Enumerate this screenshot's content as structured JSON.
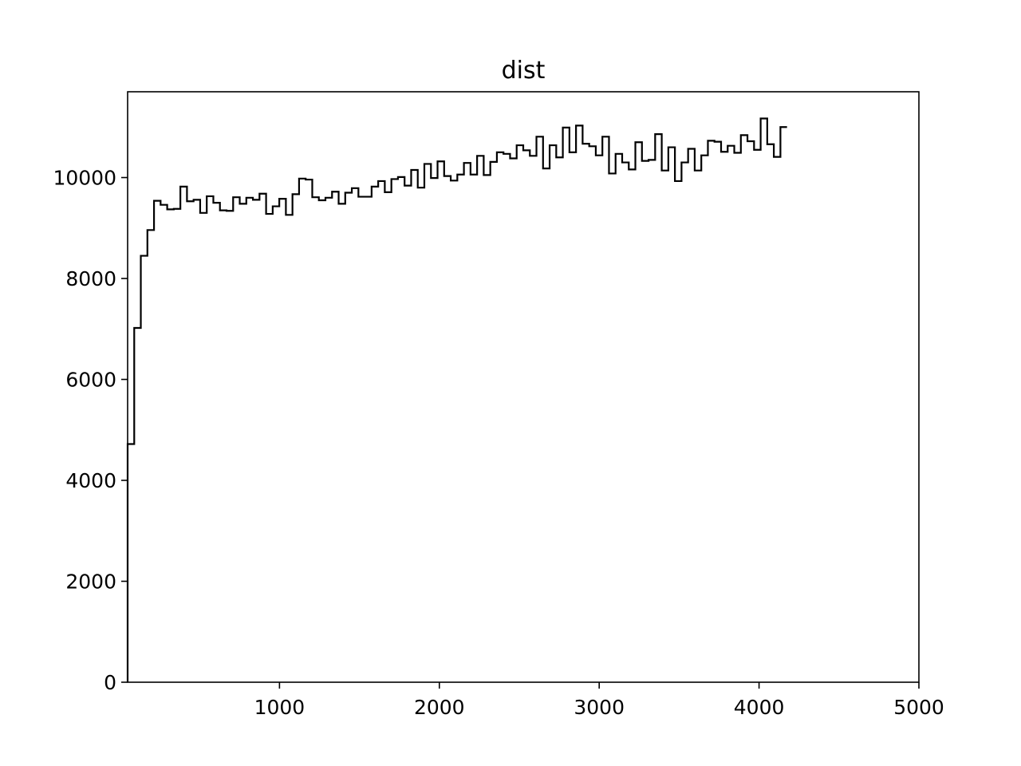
{
  "chart_data": {
    "type": "histogram",
    "title": "dist",
    "xlabel": "",
    "ylabel": "",
    "xlim": [
      50,
      5000
    ],
    "ylim": [
      0,
      11700
    ],
    "xticks": [
      1000,
      2000,
      3000,
      4000,
      5000
    ],
    "yticks": [
      0,
      2000,
      4000,
      6000,
      8000,
      10000
    ],
    "grid": false,
    "legend": "none",
    "bin_start": 50,
    "bin_width": 41.25,
    "counts": [
      4720,
      7020,
      8450,
      8960,
      9540,
      9460,
      9370,
      9380,
      9820,
      9530,
      9560,
      9300,
      9630,
      9500,
      9350,
      9340,
      9610,
      9480,
      9600,
      9560,
      9680,
      9280,
      9430,
      9580,
      9260,
      9670,
      9980,
      9960,
      9610,
      9550,
      9600,
      9720,
      9480,
      9700,
      9790,
      9620,
      9620,
      9820,
      9930,
      9710,
      9970,
      10010,
      9840,
      10150,
      9800,
      10270,
      9990,
      10320,
      10030,
      9940,
      10060,
      10290,
      10060,
      10430,
      10050,
      10310,
      10500,
      10470,
      10380,
      10640,
      10540,
      10430,
      10810,
      10180,
      10640,
      10400,
      10990,
      10500,
      11030,
      10670,
      10620,
      10440,
      10810,
      10080,
      10470,
      10300,
      10160,
      10700,
      10330,
      10350,
      10860,
      10140,
      10600,
      9930,
      10300,
      10570,
      10140,
      10440,
      10730,
      10710,
      10510,
      10630,
      10490,
      10840,
      10720,
      10550,
      11170,
      10660,
      10410,
      11000
    ]
  }
}
